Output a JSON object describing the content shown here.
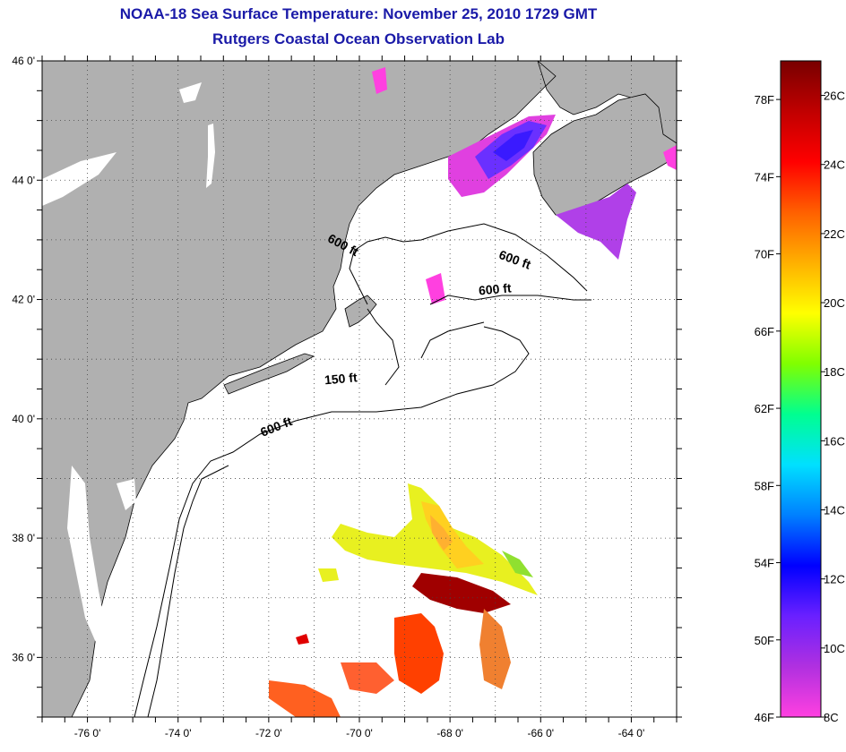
{
  "header": {
    "title": "NOAA-18 Sea Surface Temperature:  November 25, 2010 1729 GMT",
    "subtitle": "Rutgers Coastal Ocean Observation Lab"
  },
  "map": {
    "extent": {
      "lon": [
        -77,
        -63
      ],
      "lat": [
        35,
        46
      ]
    },
    "lat_ticks": [
      {
        "lat": 46,
        "label": "46 0'"
      },
      {
        "lat": 44,
        "label": "44 0'"
      },
      {
        "lat": 42,
        "label": "42 0'"
      },
      {
        "lat": 40,
        "label": "40 0'"
      },
      {
        "lat": 38,
        "label": "38 0'"
      },
      {
        "lat": 36,
        "label": "36 0'"
      }
    ],
    "lon_ticks": [
      {
        "lon": -76,
        "label": "-76 0'"
      },
      {
        "lon": -74,
        "label": "-74 0'"
      },
      {
        "lon": -72,
        "label": "-72 0'"
      },
      {
        "lon": -70,
        "label": "-70 0'"
      },
      {
        "lon": -68,
        "label": "-68 0'"
      },
      {
        "lon": -66,
        "label": "-66 0'"
      },
      {
        "lon": -64,
        "label": "-64 0'"
      }
    ],
    "depth_labels": [
      {
        "text": "600 ft",
        "lon": -70.4,
        "lat": 42.85,
        "rotate": 28
      },
      {
        "text": "600 ft",
        "lon": -66.6,
        "lat": 42.6,
        "rotate": 20
      },
      {
        "text": "600 ft",
        "lon": -67.0,
        "lat": 42.1,
        "rotate": -5
      },
      {
        "text": "150 ft",
        "lon": -70.4,
        "lat": 40.6,
        "rotate": -5
      },
      {
        "text": "600 ft",
        "lon": -71.8,
        "lat": 39.8,
        "rotate": -22
      }
    ],
    "colors": {
      "land": "#b0b0b0",
      "ocean": "#ffffff",
      "coast": "#000000",
      "frame": "#000000",
      "grid": "#555555",
      "title": "#1a1aa8"
    }
  },
  "legend": {
    "range_f": [
      46,
      80
    ],
    "range_c": [
      8,
      27
    ],
    "f_ticks": [
      {
        "value": 78,
        "label": "78F"
      },
      {
        "value": 74,
        "label": "74F"
      },
      {
        "value": 70,
        "label": "70F"
      },
      {
        "value": 66,
        "label": "66F"
      },
      {
        "value": 62,
        "label": "62F"
      },
      {
        "value": 58,
        "label": "58F"
      },
      {
        "value": 54,
        "label": "54F"
      },
      {
        "value": 50,
        "label": "50F"
      },
      {
        "value": 46,
        "label": "46F"
      }
    ],
    "c_ticks": [
      {
        "value": 26,
        "label": "26C"
      },
      {
        "value": 24,
        "label": "24C"
      },
      {
        "value": 22,
        "label": "22C"
      },
      {
        "value": 20,
        "label": "20C"
      },
      {
        "value": 18,
        "label": "18C"
      },
      {
        "value": 16,
        "label": "16C"
      },
      {
        "value": 14,
        "label": "14C"
      },
      {
        "value": 12,
        "label": "12C"
      },
      {
        "value": 10,
        "label": "10C"
      },
      {
        "value": 8,
        "label": "8C"
      }
    ],
    "gradient": [
      "#ff40e0",
      "#b030e0",
      "#6a20ff",
      "#0000ff",
      "#0080ff",
      "#00e0ff",
      "#00ff90",
      "#80ff00",
      "#ffff00",
      "#ffb000",
      "#ff6000",
      "#ff0000",
      "#c00000",
      "#780000"
    ]
  }
}
